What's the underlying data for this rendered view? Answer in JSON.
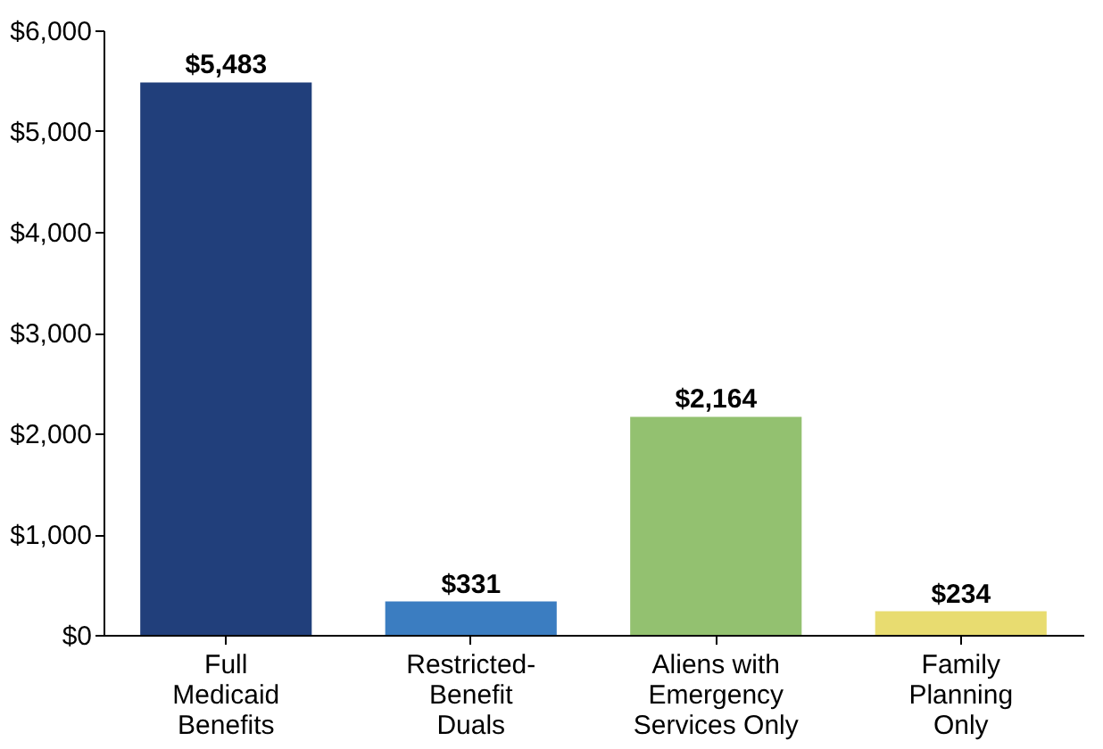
{
  "chart_data": {
    "type": "bar",
    "categories": [
      "Full\nMedicaid\nBenefits",
      "Restricted-\nBenefit\nDuals",
      "Aliens with\nEmergency\nServices Only",
      "Family\nPlanning\nOnly"
    ],
    "values": [
      5483,
      331,
      2164,
      234
    ],
    "colors": [
      "#213f7b",
      "#3b7dc1",
      "#93c170",
      "#e8dc70"
    ],
    "value_labels": [
      "$5,483",
      "$331",
      "$2,164",
      "$234"
    ],
    "ylim": [
      0,
      6000
    ],
    "yticks": [
      {
        "value": 0,
        "label": "$0"
      },
      {
        "value": 1000,
        "label": "$1,000"
      },
      {
        "value": 2000,
        "label": "$2,000"
      },
      {
        "value": 3000,
        "label": "$3,000"
      },
      {
        "value": 4000,
        "label": "$4,000"
      },
      {
        "value": 5000,
        "label": "$5,000"
      },
      {
        "value": 6000,
        "label": "$6,000"
      }
    ],
    "grid": false
  }
}
